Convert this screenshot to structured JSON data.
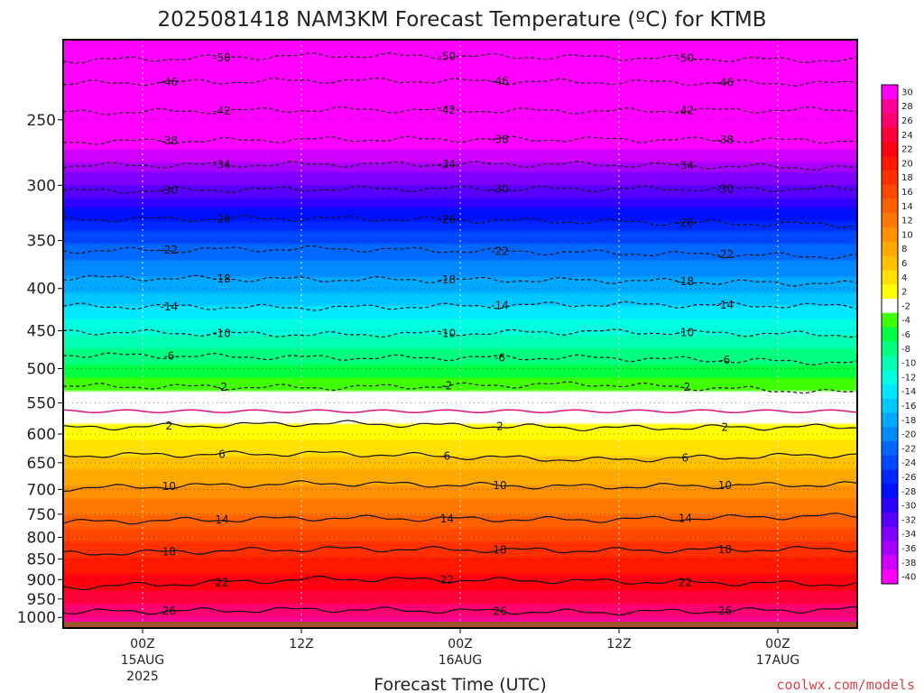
{
  "chart_data": {
    "type": "heatmap",
    "title": "2025081418 NAM3KM Forecast Temperature (ºC) for KTMB",
    "xlabel": "Forecast Time (UTC)",
    "ylabel": "",
    "y_scale": "log",
    "y_inverted": true,
    "ylim": [
      200,
      1030
    ],
    "y_ticks": [
      250,
      300,
      350,
      400,
      450,
      500,
      550,
      600,
      650,
      700,
      750,
      800,
      850,
      900,
      950,
      1000
    ],
    "xlim": [
      -6,
      54
    ],
    "x_ticks": [
      {
        "hours": 0,
        "lines": [
          "00Z",
          "15AUG",
          "2025"
        ]
      },
      {
        "hours": 12,
        "lines": [
          "12Z"
        ]
      },
      {
        "hours": 24,
        "lines": [
          "00Z",
          "16AUG"
        ]
      },
      {
        "hours": 36,
        "lines": [
          "12Z"
        ]
      },
      {
        "hours": 48,
        "lines": [
          "00Z",
          "17AUG"
        ]
      }
    ],
    "grid": true,
    "colorbar": {
      "placement": "right",
      "levels": [
        30,
        28,
        26,
        24,
        22,
        20,
        18,
        16,
        14,
        12,
        10,
        8,
        6,
        4,
        2,
        -2,
        -4,
        -6,
        -8,
        -10,
        -12,
        -14,
        -16,
        -18,
        -20,
        -22,
        -24,
        -26,
        -28,
        -30,
        -32,
        -34,
        -36,
        -38,
        -40
      ],
      "colors": [
        "#ff00ff",
        "#ff0098",
        "#ff0070",
        "#ff0038",
        "#ff0010",
        "#ff1800",
        "#ff3000",
        "#ff4800",
        "#ff6000",
        "#ff7800",
        "#ff9000",
        "#ffa800",
        "#ffc000",
        "#ffe000",
        "#ffff00",
        "#ffffff",
        "#40ff00",
        "#00ff40",
        "#00ff80",
        "#00ffb0",
        "#00ffe0",
        "#00e8ff",
        "#00c8ff",
        "#00a8ff",
        "#0088ff",
        "#0068ff",
        "#0048ff",
        "#0028ff",
        "#0010ff",
        "#3000ff",
        "#5800ff",
        "#8000ff",
        "#a800ff",
        "#d000ff",
        "#ff00ff"
      ]
    },
    "temperature_profile": {
      "pressure": [
        200,
        250,
        300,
        350,
        400,
        450,
        500,
        550,
        575,
        600,
        650,
        700,
        750,
        800,
        850,
        900,
        950,
        1000,
        1030
      ],
      "temperature": [
        -55,
        -43,
        -32,
        -22.5,
        -16.5,
        -10.5,
        -5.5,
        -0.5,
        1.5,
        3,
        7,
        10.5,
        14,
        17.5,
        20,
        23,
        25,
        28,
        29
      ]
    },
    "contours": [
      {
        "value": -50,
        "pressure": [
          212,
          209,
          210,
          212
        ]
      },
      {
        "value": -46,
        "pressure": [
          226,
          224,
          225,
          226
        ]
      },
      {
        "value": -42,
        "pressure": [
          245,
          243,
          244,
          243
        ]
      },
      {
        "value": -38,
        "pressure": [
          266,
          264,
          264,
          265
        ]
      },
      {
        "value": -34,
        "pressure": [
          284,
          283,
          283,
          286
        ]
      },
      {
        "value": -30,
        "pressure": [
          305,
          303,
          303,
          303
        ]
      },
      {
        "value": -26,
        "pressure": [
          330,
          329,
          332,
          335
        ]
      },
      {
        "value": -22,
        "pressure": [
          360,
          358,
          362,
          366
        ]
      },
      {
        "value": -18,
        "pressure": [
          388,
          390,
          391,
          395
        ]
      },
      {
        "value": -14,
        "pressure": [
          420,
          422,
          418,
          420
        ]
      },
      {
        "value": -10,
        "pressure": [
          451,
          455,
          451,
          455
        ]
      },
      {
        "value": -6,
        "pressure": [
          481,
          485,
          485,
          492
        ]
      },
      {
        "value": -2,
        "pressure": [
          525,
          527,
          522,
          535
        ]
      },
      {
        "value": 2,
        "pressure": [
          590,
          582,
          590,
          588
        ]
      },
      {
        "value": 6,
        "pressure": [
          637,
          633,
          645,
          635
        ]
      },
      {
        "value": 10,
        "pressure": [
          698,
          688,
          695,
          690
        ]
      },
      {
        "value": 14,
        "pressure": [
          767,
          758,
          762,
          753
        ]
      },
      {
        "value": 18,
        "pressure": [
          838,
          826,
          830,
          826
        ]
      },
      {
        "value": 22,
        "pressure": [
          920,
          898,
          904,
          912
        ]
      },
      {
        "value": 26,
        "pressure": [
          985,
          978,
          986,
          978
        ]
      }
    ],
    "freezing_level_pressure": 563,
    "terrain_pressure": 1012
  },
  "credit": "coolwx.com/models"
}
